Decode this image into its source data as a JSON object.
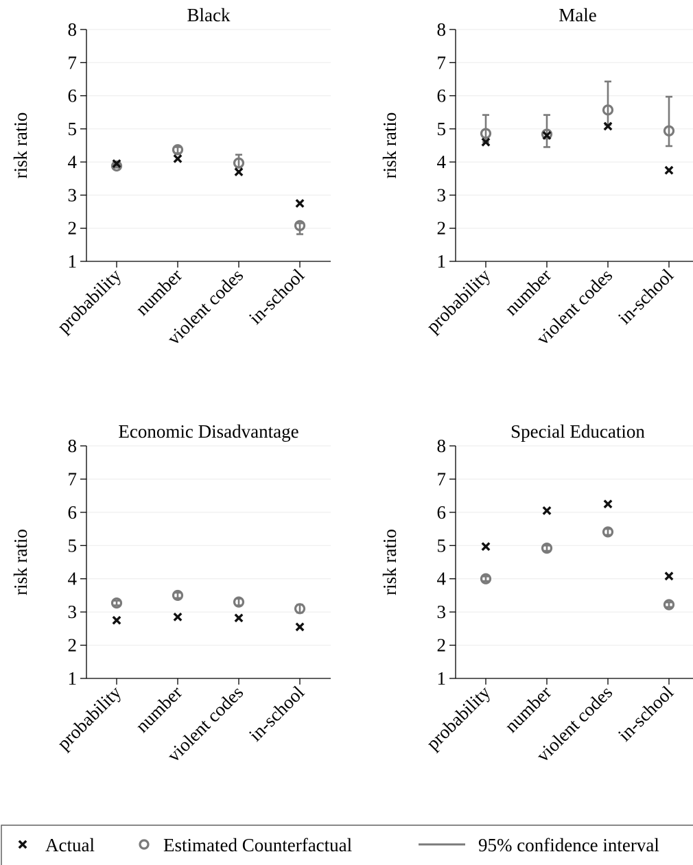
{
  "chart_data": [
    {
      "type": "scatter",
      "title": "Black",
      "ylabel": "risk ratio",
      "categories": [
        "probability",
        "number",
        "violent codes",
        "in-school"
      ],
      "ylim": [
        1,
        8
      ],
      "yticks": [
        "1",
        "2",
        "3",
        "4",
        "5",
        "6",
        "7",
        "8"
      ],
      "grid": true,
      "series": [
        {
          "name": "Actual",
          "values": [
            3.95,
            4.1,
            3.7,
            2.75
          ]
        },
        {
          "name": "Estimated Counterfactual",
          "values": [
            3.88,
            4.37,
            3.97,
            2.08
          ],
          "ci_low": [
            3.83,
            4.27,
            3.83,
            1.82
          ],
          "ci_high": [
            3.93,
            4.45,
            4.22,
            2.15
          ]
        }
      ]
    },
    {
      "type": "scatter",
      "title": "Male",
      "ylabel": "risk ratio",
      "categories": [
        "probability",
        "number",
        "violent codes",
        "in-school"
      ],
      "ylim": [
        1,
        8
      ],
      "yticks": [
        "1",
        "2",
        "3",
        "4",
        "5",
        "6",
        "7",
        "8"
      ],
      "grid": true,
      "series": [
        {
          "name": "Actual",
          "values": [
            4.6,
            4.8,
            5.08,
            3.75
          ]
        },
        {
          "name": "Estimated Counterfactual",
          "values": [
            4.86,
            4.84,
            5.57,
            4.94
          ],
          "ci_low": [
            4.6,
            4.45,
            5.12,
            4.48
          ],
          "ci_high": [
            5.42,
            5.42,
            6.43,
            5.97
          ]
        }
      ]
    },
    {
      "type": "scatter",
      "title": "Economic Disadvantage",
      "ylabel": "risk ratio",
      "categories": [
        "probability",
        "number",
        "violent codes",
        "in-school"
      ],
      "ylim": [
        1,
        8
      ],
      "yticks": [
        "1",
        "2",
        "3",
        "4",
        "5",
        "6",
        "7",
        "8"
      ],
      "grid": true,
      "series": [
        {
          "name": "Actual",
          "values": [
            2.75,
            2.85,
            2.82,
            2.55
          ]
        },
        {
          "name": "Estimated Counterfactual",
          "values": [
            3.27,
            3.5,
            3.3,
            3.1
          ],
          "ci_low": [
            3.2,
            3.42,
            3.2,
            2.98
          ],
          "ci_high": [
            3.34,
            3.58,
            3.4,
            3.22
          ]
        }
      ]
    },
    {
      "type": "scatter",
      "title": "Special Education",
      "ylabel": "risk ratio",
      "categories": [
        "probability",
        "number",
        "violent codes",
        "in-school"
      ],
      "ylim": [
        1,
        8
      ],
      "yticks": [
        "1",
        "2",
        "3",
        "4",
        "5",
        "6",
        "7",
        "8"
      ],
      "grid": true,
      "series": [
        {
          "name": "Actual",
          "values": [
            4.97,
            6.05,
            6.25,
            4.08
          ]
        },
        {
          "name": "Estimated Counterfactual",
          "values": [
            4.0,
            4.92,
            5.41,
            3.22
          ],
          "ci_low": [
            3.93,
            4.84,
            5.32,
            3.15
          ],
          "ci_high": [
            4.07,
            5.0,
            5.5,
            3.29
          ]
        }
      ]
    }
  ],
  "legend": {
    "position": "bottom",
    "items": [
      {
        "label": "Actual",
        "icon": "x-marker"
      },
      {
        "label": "Estimated Counterfactual",
        "icon": "circle-marker"
      },
      {
        "label": "95% confidence interval",
        "icon": "line"
      }
    ]
  },
  "colors": {
    "actual": "#111111",
    "counterfactual": "#7a7a7a",
    "ci": "#7a7a7a",
    "grid": "#ebebeb"
  }
}
